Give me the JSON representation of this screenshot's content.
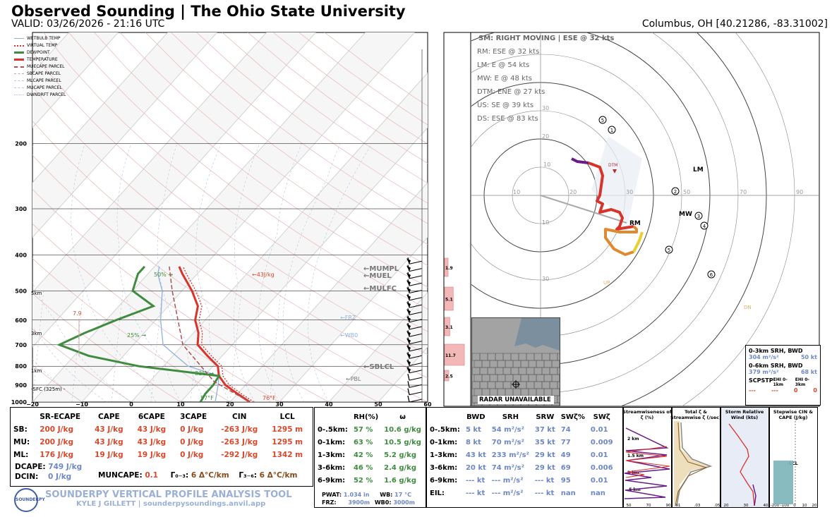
{
  "header": {
    "title": "Observed Sounding | The Ohio State University",
    "valid": "VALID: 03/26/2026 - 21:16 UTC",
    "location": "Columbus, OH [40.21286, -83.31002]"
  },
  "colors": {
    "temperature": "#d9332b",
    "dewpoint": "#3f8c3f",
    "wetbulb": "#8fb0e0",
    "parcel": "#b05050",
    "hodo_purple": "#6a1b8a",
    "hodo_red": "#d9332b",
    "hodo_orange": "#e08a30",
    "hodo_yellow": "#e8d030"
  },
  "legend": [
    "WETBULB TEMP",
    "VIRTUAL TEMP",
    "DEWPOINT",
    "TEMPERATURE",
    "MUECAPE PARCEL",
    "SBCAPE PARCEL",
    "MLCAPE PARCEL",
    "MUCAPE PARCEL",
    "DWNDRFT PARCEL"
  ],
  "chart_data": [
    {
      "type": "line",
      "name": "skew-t",
      "pressure_ticks": [
        "200",
        "300",
        "400",
        "500",
        "600",
        "700",
        "800",
        "900",
        "1000"
      ],
      "x_ticks": [
        "−20",
        "−10",
        "0",
        "10",
        "20",
        "30",
        "40",
        "50",
        "60"
      ],
      "height_labels": [
        "5km",
        "3km",
        "1km",
        "-SFC (325m) -"
      ],
      "ylim": [
        1000,
        100
      ],
      "xlim": [
        -20,
        60
      ],
      "y_log": true,
      "temperature": [
        [
          1000,
          24
        ],
        [
          950,
          20
        ],
        [
          900,
          16
        ],
        [
          850,
          13
        ],
        [
          800,
          11
        ],
        [
          750,
          7
        ],
        [
          700,
          3
        ],
        [
          650,
          1
        ],
        [
          600,
          -2
        ],
        [
          550,
          -4
        ],
        [
          500,
          -8
        ],
        [
          450,
          -13
        ],
        [
          430,
          -15
        ]
      ],
      "dewpoint": [
        [
          1000,
          14
        ],
        [
          950,
          13.5
        ],
        [
          900,
          13.5
        ],
        [
          850,
          13
        ],
        [
          800,
          -5
        ],
        [
          750,
          -17
        ],
        [
          700,
          -25
        ],
        [
          650,
          -22
        ],
        [
          600,
          -18
        ],
        [
          550,
          -13
        ],
        [
          500,
          -20
        ],
        [
          450,
          -22
        ],
        [
          430,
          -22
        ]
      ],
      "wetbulb": [
        [
          1000,
          17
        ],
        [
          900,
          14.5
        ],
        [
          850,
          13
        ],
        [
          800,
          5
        ],
        [
          700,
          -4
        ],
        [
          600,
          -9
        ],
        [
          500,
          -14
        ],
        [
          450,
          -18
        ],
        [
          430,
          -19
        ]
      ],
      "annotations": [
        "50% →",
        "25% →",
        "82% →",
        "←43J/kg",
        "57°F",
        "76°F",
        "7.9",
        "←MUMPL",
        "←MUEL",
        "←MULFC",
        "←SBLCL",
        "←FRZ",
        "←WB0",
        "←PBL"
      ],
      "wind_barbs": 20,
      "omega_bars": [
        {
          "label": "1.9",
          "value": 1.9
        },
        {
          "label": "5.1",
          "value": 5.1
        },
        {
          "label": "3.1",
          "value": 3.1
        },
        {
          "label": "11.7",
          "value": 11.7
        },
        {
          "label": "2.5",
          "value": 2.5
        }
      ]
    },
    {
      "type": "line",
      "name": "hodograph",
      "storm_motion": "SM: RIGHT MOVING | ESE @ 32 kts",
      "motions": [
        "RM: ESE @ 32 kts",
        "LM: E @ 54 kts",
        "MW: E @ 48 kts",
        "DTM: ENE @ 27 kts",
        "US: SE @ 39 kts",
        "DS: ESE @ 83 kts"
      ],
      "ring_labels": [
        "10",
        "20",
        "30",
        "10",
        "30",
        "50",
        "70",
        "90"
      ],
      "point_labels": [
        "LM",
        "MW",
        "RM",
        "DTM",
        "UP",
        "DN"
      ],
      "trace": [
        [
          11,
          13
        ],
        [
          13,
          12
        ],
        [
          17,
          11.5
        ],
        [
          21,
          10
        ],
        [
          22,
          7
        ],
        [
          21,
          0
        ],
        [
          20,
          -2
        ],
        [
          22,
          -3
        ],
        [
          21,
          -6
        ],
        [
          25,
          -5
        ],
        [
          28,
          -6
        ],
        [
          29,
          -8
        ],
        [
          28,
          -11
        ],
        [
          27,
          -12
        ],
        [
          33,
          -11
        ],
        [
          34,
          -12
        ],
        [
          34,
          -13
        ],
        [
          28,
          -13
        ],
        [
          23,
          -12
        ],
        [
          23,
          -15
        ],
        [
          26,
          -19
        ],
        [
          30,
          -21
        ],
        [
          33,
          -20
        ],
        [
          35,
          -16
        ],
        [
          36,
          -13
        ]
      ],
      "height_markers": [
        "5",
        "1",
        "2",
        "3",
        "4",
        "5",
        "6"
      ]
    }
  ],
  "radar": {
    "label": "RADAR UNAVAILABLE"
  },
  "srh_box": {
    "row1": "0-3km SRH,   BWD",
    "row1v": [
      "304 m²/s²",
      "50 kt"
    ],
    "row2": "0-6km SRH,   BWD",
    "row2v": [
      "379 m²/s²",
      "68 kt"
    ],
    "idx": [
      "SCP",
      "STP",
      "EHI 0-1km",
      "EHI 0-3km"
    ],
    "idxv": [
      "---",
      "---",
      "0",
      "0"
    ]
  },
  "params": {
    "headers": [
      "SR-ECAPE",
      "CAPE",
      "6CAPE",
      "3CAPE",
      "CIN",
      "LCL"
    ],
    "rows": [
      {
        "name": "SB:",
        "vals": [
          "200 J/kg",
          "43 J/kg",
          "43 J/kg",
          "0 J/kg",
          "-263 J/kg",
          "1295 m"
        ]
      },
      {
        "name": "MU:",
        "vals": [
          "200 J/kg",
          "43 J/kg",
          "43 J/kg",
          "0 J/kg",
          "-263 J/kg",
          "1295 m"
        ]
      },
      {
        "name": "ML:",
        "vals": [
          "176 J/kg",
          "19 J/kg",
          "19 J/kg",
          "0 J/kg",
          "-292 J/kg",
          "1342 m"
        ]
      }
    ],
    "dcape_label": "DCAPE:",
    "dcape": "749 J/kg",
    "dcin_label": "DCIN:",
    "dcin": "0 J/kg",
    "muncape_label": "MUNCAPE:",
    "muncape": "0.1",
    "g03_label": "Γ₀₋₃:",
    "g03": "6 Δ°C/km",
    "g36_label": "Γ₃₋₆:",
    "g36": "6 Δ°C/km"
  },
  "moisture": {
    "headers": [
      "RH(%)",
      "ω"
    ],
    "rows": [
      {
        "layer": "0-.5km:",
        "rh": "57 %",
        "w": "10.6 g/kg"
      },
      {
        "layer": "0-1km:",
        "rh": "63 %",
        "w": "10.5 g/kg"
      },
      {
        "layer": "1-3km:",
        "rh": "42 %",
        "w": "5.2 g/kg"
      },
      {
        "layer": "3-6km:",
        "rh": "46 %",
        "w": "2.4 g/kg"
      },
      {
        "layer": "6-9km:",
        "rh": "52 %",
        "w": "1.6 g/kg"
      }
    ],
    "pwat_label": "PWAT:",
    "pwat": "1.034 in",
    "wb_label": "WB:",
    "wb": "17 °C",
    "frz_label": "FRZ:",
    "frz": "3900m",
    "wb0_label": "WB0:",
    "wb0": "3000m"
  },
  "kinematics": {
    "headers": [
      "BWD",
      "SRH",
      "SRW",
      "SWζ%",
      "SWζ"
    ],
    "rows": [
      {
        "layer": "0-.5km:",
        "v": [
          "5 kt",
          "54 m²/s²",
          "37 kt",
          "74",
          "0.01"
        ]
      },
      {
        "layer": "0-1km:",
        "v": [
          "8 kt",
          "70 m²/s²",
          "35 kt",
          "77",
          "0.009"
        ]
      },
      {
        "layer": "1-3km:",
        "v": [
          "43 kt",
          "233 m²/s²",
          "29 kt",
          "49",
          "0.01"
        ]
      },
      {
        "layer": "3-6km:",
        "v": [
          "20 kt",
          "74 m²/s²",
          "29 kt",
          "69",
          "0.006"
        ]
      },
      {
        "layer": "6-9km:",
        "v": [
          "--- kt",
          "--- m²/s²",
          "--- kt",
          "95",
          "0.01"
        ]
      },
      {
        "layer": "EIL:",
        "v": [
          "--- kt",
          "--- m²/s²",
          "--- kt",
          "nan",
          "nan"
        ]
      }
    ]
  },
  "mini": [
    {
      "title": "Streamwiseness of ζ (%)",
      "ticks": [
        "50",
        "70",
        "90"
      ],
      "h": [
        "2 km",
        "1.5 km",
        "1 km",
        ".5 km"
      ]
    },
    {
      "title": "Total ζ & Streamwise ζ (/sec)",
      "ticks": [
        ".01",
        ".03",
        ".05"
      ]
    },
    {
      "title": "Storm Relative Wind (kts)",
      "ticks": [
        "20",
        "30",
        "40"
      ]
    },
    {
      "title": "Stepwise CIN & CAPE (J/kg)",
      "ticks": [
        "-200",
        "-100",
        "0",
        "10",
        "20"
      ],
      "lcl": "-LCL"
    }
  ],
  "footer": {
    "tool": "SOUNDERPY VERTICAL PROFILE ANALYSIS TOOL",
    "author": "KYLE J GILLETT | sounderpysoundings.anvil.app",
    "logo": "SOUNDERPY"
  }
}
